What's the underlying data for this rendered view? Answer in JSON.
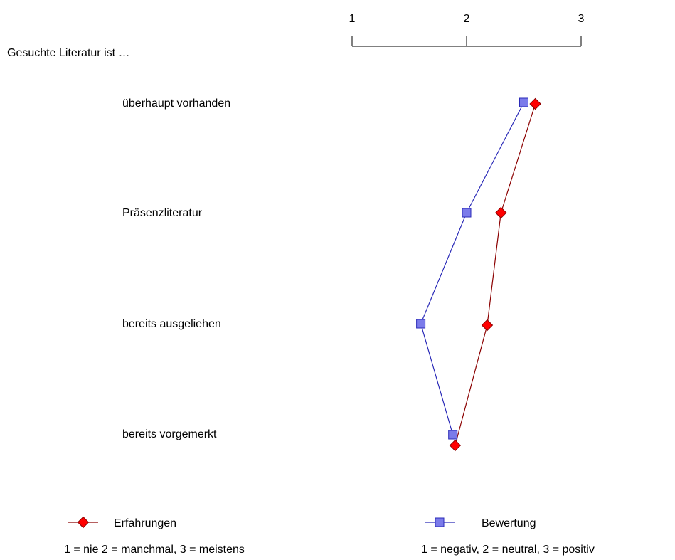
{
  "chart_data": {
    "type": "line",
    "orientation": "horizontal-values-vertical-categories",
    "title": "Gesuchte Literatur ist …",
    "scale": {
      "min": 1,
      "max": 3,
      "ticks": [
        1,
        2,
        3
      ],
      "position": "top"
    },
    "categories": [
      "überhaupt vorhanden",
      "Präsenzliteratur",
      "bereits ausgeliehen",
      "bereits vorgemerkt"
    ],
    "series": [
      {
        "name": "Erfahrungen",
        "marker": "diamond",
        "line_color": "#8b0000",
        "marker_color": "#ff0000",
        "values": [
          2.6,
          2.3,
          2.18,
          1.9
        ]
      },
      {
        "name": "Bewertung",
        "marker": "square",
        "line_color": "#2b2bb8",
        "marker_color": "#7b7bea",
        "values": [
          2.5,
          2.0,
          1.6,
          1.88
        ]
      }
    ],
    "legend": [
      {
        "series": "Erfahrungen",
        "note": "1 = nie 2 = manchmal, 3 = meistens"
      },
      {
        "series": "Bewertung",
        "note": "1 = negativ, 2 = neutral, 3 = positiv"
      }
    ],
    "legend_position": "bottom"
  }
}
